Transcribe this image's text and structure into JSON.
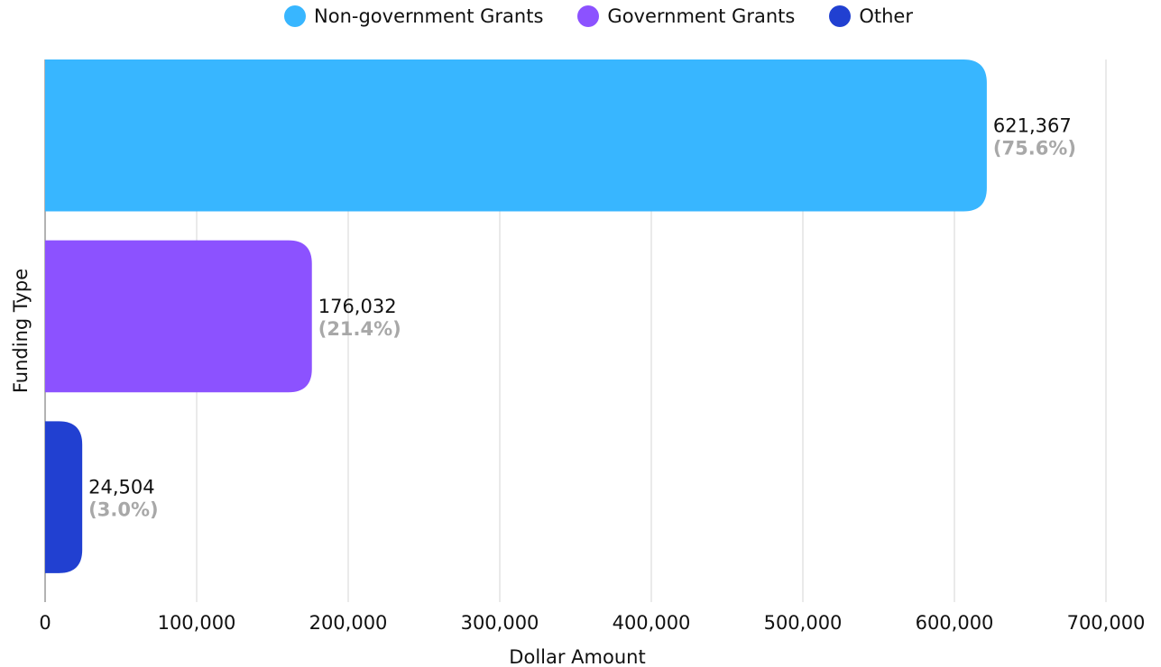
{
  "chart_data": {
    "type": "bar",
    "orientation": "horizontal",
    "xlabel": "Dollar Amount",
    "ylabel": "Funding Type",
    "xlim": [
      0,
      700000
    ],
    "xticks": [
      "0",
      "100,000",
      "200,000",
      "300,000",
      "400,000",
      "500,000",
      "600,000",
      "700,000"
    ],
    "grid": true,
    "legend_position": "top",
    "series": [
      {
        "name": "Non-government Grants",
        "value": 621367,
        "value_label": "621,367",
        "percent_label": "(75.6%)",
        "color": "#38b6ff"
      },
      {
        "name": "Government Grants",
        "value": 176032,
        "value_label": "176,032",
        "percent_label": "(21.4%)",
        "color": "#8c52ff"
      },
      {
        "name": "Other",
        "value": 24504,
        "value_label": "24,504",
        "percent_label": "(3.0%)",
        "color": "#2140d1"
      }
    ]
  }
}
